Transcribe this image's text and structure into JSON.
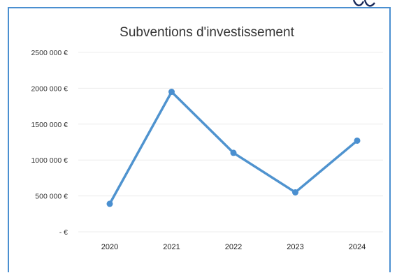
{
  "chart_data": {
    "type": "line",
    "title": "Subventions d'investissement",
    "categories": [
      "2020",
      "2021",
      "2022",
      "2023",
      "2024"
    ],
    "series": [
      {
        "values": [
          390000,
          1950000,
          1100000,
          550000,
          1270000
        ]
      }
    ],
    "ylim": [
      0,
      2500000
    ],
    "yticks": [
      {
        "value": 2500000,
        "label": "2500 000 €"
      },
      {
        "value": 2000000,
        "label": "2000 000 €"
      },
      {
        "value": 1500000,
        "label": "1500 000 €"
      },
      {
        "value": 1000000,
        "label": "1000 000 €"
      },
      {
        "value": 500000,
        "label": "500 000 €"
      },
      {
        "value": 0,
        "label": "-   €"
      }
    ],
    "grid": true,
    "legend": "none",
    "colors": {
      "line": "#4f93cf",
      "marker": "#4a8fd0",
      "frame": "#4a8fd0",
      "grid": "#ececec"
    }
  }
}
